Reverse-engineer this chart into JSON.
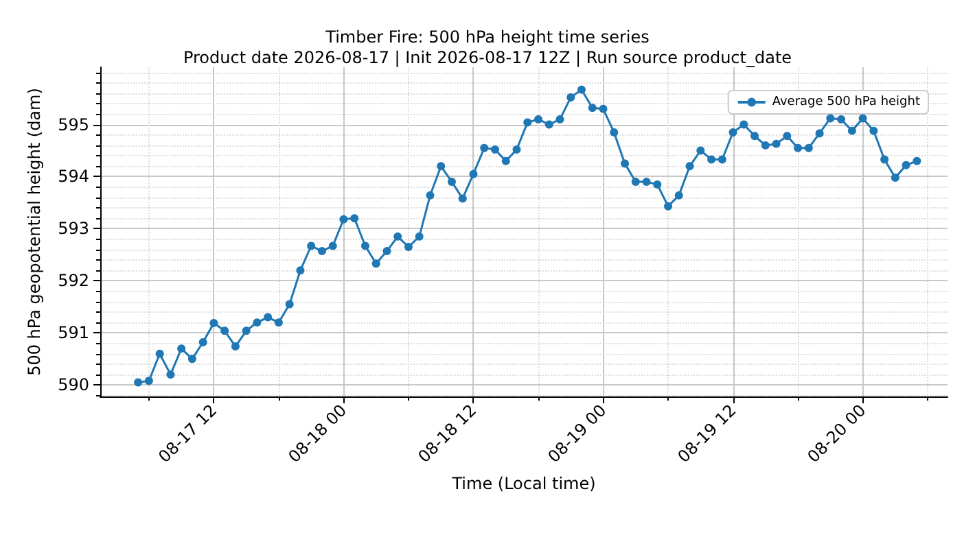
{
  "chart_data": {
    "type": "line",
    "title": "Timber Fire: 500 hPa height time series",
    "subtitle": "Product date 2026-08-17 | Init 2026-08-17 12Z | Run source product_date",
    "xlabel": "Time (Local time)",
    "ylabel": "500 hPa geopotential height (dam)",
    "x": [
      "2026-08-17T05:00",
      "2026-08-17T06:00",
      "2026-08-17T07:00",
      "2026-08-17T08:00",
      "2026-08-17T09:00",
      "2026-08-17T10:00",
      "2026-08-17T11:00",
      "2026-08-17T12:00",
      "2026-08-17T13:00",
      "2026-08-17T14:00",
      "2026-08-17T15:00",
      "2026-08-17T16:00",
      "2026-08-17T17:00",
      "2026-08-17T18:00",
      "2026-08-17T19:00",
      "2026-08-17T20:00",
      "2026-08-17T21:00",
      "2026-08-17T22:00",
      "2026-08-17T23:00",
      "2026-08-18T00:00",
      "2026-08-18T01:00",
      "2026-08-18T02:00",
      "2026-08-18T03:00",
      "2026-08-18T04:00",
      "2026-08-18T05:00",
      "2026-08-18T06:00",
      "2026-08-18T07:00",
      "2026-08-18T08:00",
      "2026-08-18T09:00",
      "2026-08-18T10:00",
      "2026-08-18T11:00",
      "2026-08-18T12:00",
      "2026-08-18T13:00",
      "2026-08-18T14:00",
      "2026-08-18T15:00",
      "2026-08-18T16:00",
      "2026-08-18T17:00",
      "2026-08-18T18:00",
      "2026-08-18T19:00",
      "2026-08-18T20:00",
      "2026-08-18T21:00",
      "2026-08-18T22:00",
      "2026-08-18T23:00",
      "2026-08-19T00:00",
      "2026-08-19T01:00",
      "2026-08-19T02:00",
      "2026-08-19T03:00",
      "2026-08-19T04:00",
      "2026-08-19T05:00",
      "2026-08-19T06:00",
      "2026-08-19T07:00",
      "2026-08-19T08:00",
      "2026-08-19T09:00",
      "2026-08-19T10:00",
      "2026-08-19T11:00",
      "2026-08-19T12:00",
      "2026-08-19T13:00",
      "2026-08-19T14:00",
      "2026-08-19T15:00",
      "2026-08-19T16:00",
      "2026-08-19T17:00",
      "2026-08-19T18:00",
      "2026-08-19T19:00",
      "2026-08-19T20:00",
      "2026-08-19T21:00",
      "2026-08-19T22:00",
      "2026-08-19T23:00",
      "2026-08-20T00:00",
      "2026-08-20T01:00",
      "2026-08-20T02:00",
      "2026-08-20T03:00",
      "2026-08-20T04:00",
      "2026-08-20T05:00"
    ],
    "series": [
      {
        "name": "Average 500 hPa height",
        "color": "#1f77b4",
        "values": [
          590.05,
          590.08,
          590.6,
          590.2,
          590.7,
          590.5,
          590.82,
          591.19,
          591.04,
          590.74,
          591.04,
          591.2,
          591.3,
          591.2,
          591.55,
          592.2,
          592.67,
          592.57,
          592.67,
          593.18,
          593.2,
          592.67,
          592.33,
          592.57,
          592.85,
          592.65,
          592.85,
          593.64,
          594.2,
          593.9,
          593.58,
          594.05,
          594.55,
          594.52,
          594.3,
          594.52,
          595.04,
          595.1,
          595.0,
          595.1,
          595.52,
          595.67,
          595.32,
          595.3,
          594.85,
          594.25,
          593.9,
          593.9,
          593.85,
          593.43,
          593.64,
          594.2,
          594.5,
          594.33,
          594.33,
          594.85,
          595.0,
          594.78,
          594.6,
          594.63,
          594.78,
          594.55,
          594.55,
          594.83,
          595.12,
          595.1,
          594.88,
          595.12,
          594.88,
          594.33,
          593.98,
          594.22,
          594.3
        ]
      }
    ],
    "xlim": [
      "2026-08-17T01:30",
      "2026-08-20T07:50"
    ],
    "xticks": [
      {
        "value": "2026-08-17T06:00",
        "label": null
      },
      {
        "value": "2026-08-17T12:00",
        "label": "08-17 12"
      },
      {
        "value": "2026-08-17T18:00",
        "label": null
      },
      {
        "value": "2026-08-18T00:00",
        "label": "08-18 00"
      },
      {
        "value": "2026-08-18T06:00",
        "label": null
      },
      {
        "value": "2026-08-18T12:00",
        "label": "08-18 12"
      },
      {
        "value": "2026-08-18T18:00",
        "label": null
      },
      {
        "value": "2026-08-19T00:00",
        "label": "08-19 00"
      },
      {
        "value": "2026-08-19T06:00",
        "label": null
      },
      {
        "value": "2026-08-19T12:00",
        "label": "08-19 12"
      },
      {
        "value": "2026-08-19T18:00",
        "label": null
      },
      {
        "value": "2026-08-20T00:00",
        "label": "08-20 00"
      },
      {
        "value": "2026-08-20T06:00",
        "label": null
      }
    ],
    "ylim": [
      589.78,
      596.1
    ],
    "yticks": [
      {
        "value": 589.8,
        "label": null
      },
      590,
      {
        "value": 590.2,
        "label": null
      },
      {
        "value": 590.4,
        "label": null
      },
      {
        "value": 590.6,
        "label": null
      },
      {
        "value": 590.8,
        "label": null
      },
      591,
      {
        "value": 591.2,
        "label": null
      },
      {
        "value": 591.4,
        "label": null
      },
      {
        "value": 591.6,
        "label": null
      },
      {
        "value": 591.8,
        "label": null
      },
      592,
      {
        "value": 592.2,
        "label": null
      },
      {
        "value": 592.4,
        "label": null
      },
      {
        "value": 592.6,
        "label": null
      },
      {
        "value": 592.8,
        "label": null
      },
      593,
      {
        "value": 593.2,
        "label": null
      },
      {
        "value": 593.4,
        "label": null
      },
      {
        "value": 593.6,
        "label": null
      },
      {
        "value": 593.8,
        "label": null
      },
      594,
      {
        "value": 594.2,
        "label": null
      },
      {
        "value": 594.4,
        "label": null
      },
      {
        "value": 594.6,
        "label": null
      },
      {
        "value": 594.8,
        "label": null
      },
      595,
      {
        "value": 595.2,
        "label": null
      },
      {
        "value": 595.4,
        "label": null
      },
      {
        "value": 595.6,
        "label": null
      },
      {
        "value": 595.8,
        "label": null
      },
      {
        "value": 596.0,
        "label": null
      }
    ],
    "grid": true,
    "legend": "top right",
    "marker": "circle",
    "line_style": "solid"
  }
}
